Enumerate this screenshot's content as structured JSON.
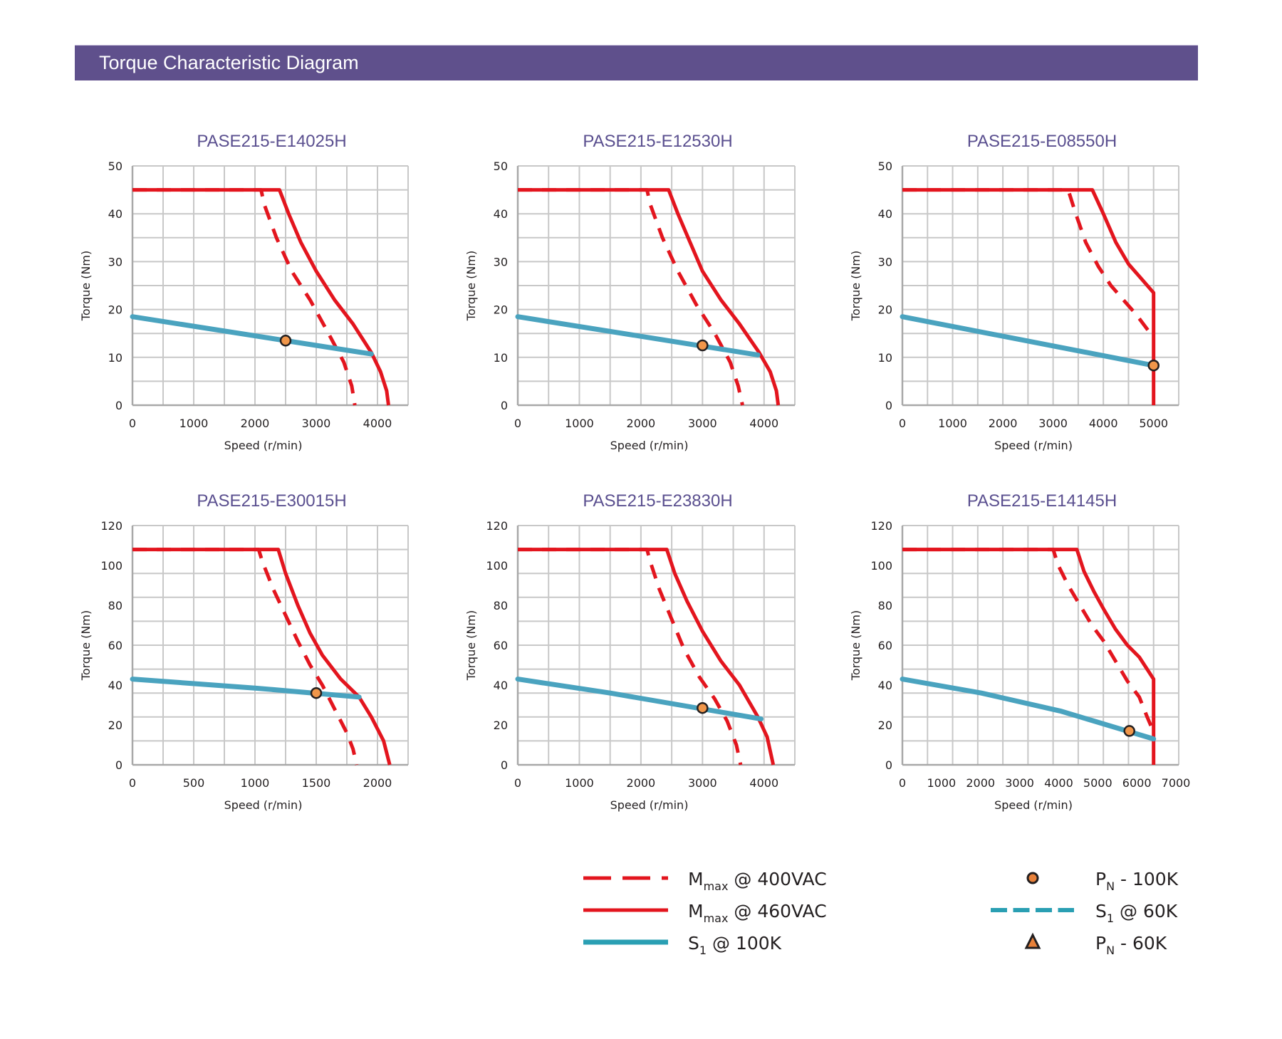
{
  "header": {
    "title": "Torque Characteristic Diagram"
  },
  "colors": {
    "header_bg": "#5f508c",
    "title_text": "#5a4f8f",
    "mmax_400": "#e3151e",
    "mmax_460": "#e3151e",
    "s1_100k": "#4aa3bf",
    "s1_60k": "#2a9fb3",
    "pn_marker": "#f0964a",
    "grid": "#c8c8c8"
  },
  "legend": [
    {
      "key": "mmax_400",
      "main": "M",
      "sub": "max",
      "rest": " @ 400VAC",
      "style": "dash-red"
    },
    {
      "key": "mmax_460",
      "main": "M",
      "sub": "max",
      "rest": " @ 460VAC",
      "style": "solid-red"
    },
    {
      "key": "s1_100k",
      "main": "S",
      "sub": "1",
      "rest": " @ 100K",
      "style": "solid-blue"
    },
    {
      "key": "pn_100k",
      "main": "P",
      "sub": "N",
      "rest": " - 100K",
      "style": "circle"
    },
    {
      "key": "s1_60k",
      "main": "S",
      "sub": "1",
      "rest": " @ 60K",
      "style": "dash-blue"
    },
    {
      "key": "pn_60k",
      "main": "P",
      "sub": "N",
      "rest": " - 60K",
      "style": "triangle"
    }
  ],
  "chart_data": [
    {
      "type": "line",
      "title": "PASE215-E14025H",
      "xlabel": "Speed (r/min)",
      "ylabel": "Torque (Nm)",
      "xlim": [
        0,
        4500
      ],
      "ylim": [
        0,
        50
      ],
      "xticks": [
        0,
        1000,
        2000,
        3000,
        4000
      ],
      "yticks": [
        0,
        10,
        20,
        30,
        40,
        50
      ],
      "grid": true,
      "grid_x_step": 500,
      "grid_y_step": 5,
      "series": [
        {
          "name": "Mmax @ 400VAC",
          "style": "dashed",
          "points": [
            [
              0,
              45
            ],
            [
              2100,
              45
            ],
            [
              2150,
              42
            ],
            [
              2350,
              35
            ],
            [
              2600,
              28
            ],
            [
              2900,
              22
            ],
            [
              3200,
              15
            ],
            [
              3450,
              9
            ],
            [
              3580,
              4
            ],
            [
              3630,
              0
            ]
          ]
        },
        {
          "name": "Mmax @ 460VAC",
          "style": "solid",
          "points": [
            [
              0,
              45
            ],
            [
              2400,
              45
            ],
            [
              2550,
              40
            ],
            [
              2750,
              34
            ],
            [
              3000,
              28
            ],
            [
              3300,
              22
            ],
            [
              3600,
              17
            ],
            [
              3900,
              11
            ],
            [
              4050,
              7
            ],
            [
              4150,
              3
            ],
            [
              4180,
              0
            ]
          ]
        },
        {
          "name": "S1 @ 100K",
          "style": "solid",
          "points": [
            [
              0,
              18.5
            ],
            [
              3900,
              10.7
            ]
          ]
        }
      ],
      "markers": [
        {
          "name": "PN - 100K",
          "shape": "circle",
          "x": 2500,
          "y": 13.5
        }
      ]
    },
    {
      "type": "line",
      "title": "PASE215-E12530H",
      "xlabel": "Speed (r/min)",
      "ylabel": "Torque (Nm)",
      "xlim": [
        0,
        4500
      ],
      "ylim": [
        0,
        50
      ],
      "xticks": [
        0,
        1000,
        2000,
        3000,
        4000
      ],
      "yticks": [
        0,
        10,
        20,
        30,
        40,
        50
      ],
      "grid": true,
      "grid_x_step": 500,
      "grid_y_step": 5,
      "series": [
        {
          "name": "Mmax @ 400VAC",
          "style": "dashed",
          "points": [
            [
              0,
              45
            ],
            [
              2100,
              45
            ],
            [
              2150,
              42
            ],
            [
              2350,
              35
            ],
            [
              2600,
              28
            ],
            [
              2900,
              21
            ],
            [
              3200,
              15
            ],
            [
              3450,
              9
            ],
            [
              3580,
              4
            ],
            [
              3650,
              0
            ]
          ]
        },
        {
          "name": "Mmax @ 460VAC",
          "style": "solid",
          "points": [
            [
              0,
              45
            ],
            [
              2450,
              45
            ],
            [
              2600,
              40
            ],
            [
              2800,
              34
            ],
            [
              3000,
              28
            ],
            [
              3300,
              22
            ],
            [
              3600,
              17
            ],
            [
              3920,
              11
            ],
            [
              4100,
              7
            ],
            [
              4200,
              3
            ],
            [
              4230,
              0
            ]
          ]
        },
        {
          "name": "S1 @ 100K",
          "style": "solid",
          "points": [
            [
              0,
              18.5
            ],
            [
              3900,
              10.5
            ]
          ]
        }
      ],
      "markers": [
        {
          "name": "PN - 100K",
          "shape": "circle",
          "x": 3000,
          "y": 12.5
        }
      ]
    },
    {
      "type": "line",
      "title": "PASE215-E08550H",
      "xlabel": "Speed (r/min)",
      "ylabel": "Torque (Nm)",
      "xlim": [
        0,
        5500
      ],
      "ylim": [
        0,
        50
      ],
      "xticks": [
        0,
        1000,
        2000,
        3000,
        4000,
        5000
      ],
      "yticks": [
        0,
        10,
        20,
        30,
        40,
        50
      ],
      "grid": true,
      "grid_x_step": 500,
      "grid_y_step": 5,
      "series": [
        {
          "name": "Mmax @ 400VAC",
          "style": "dashed",
          "points": [
            [
              0,
              45
            ],
            [
              3300,
              45
            ],
            [
              3450,
              40
            ],
            [
              3650,
              34
            ],
            [
              3900,
              29
            ],
            [
              4150,
              25
            ],
            [
              4400,
              22
            ],
            [
              4650,
              19
            ],
            [
              4900,
              15.5
            ]
          ]
        },
        {
          "name": "Mmax @ 460VAC",
          "style": "solid",
          "points": [
            [
              0,
              45
            ],
            [
              3780,
              45
            ],
            [
              4000,
              40
            ],
            [
              4250,
              34
            ],
            [
              4500,
              29.5
            ],
            [
              4750,
              26.5
            ],
            [
              5000,
              23.5
            ],
            [
              5000,
              0
            ]
          ]
        },
        {
          "name": "S1 @ 100K",
          "style": "solid",
          "points": [
            [
              0,
              18.5
            ],
            [
              5000,
              8.3
            ]
          ]
        }
      ],
      "markers": [
        {
          "name": "PN - 100K",
          "shape": "circle",
          "x": 5000,
          "y": 8.3
        }
      ]
    },
    {
      "type": "line",
      "title": "PASE215-E30015H",
      "xlabel": "Speed (r/min)",
      "ylabel": "Torque (Nm)",
      "xlim": [
        0,
        2250
      ],
      "ylim": [
        0,
        120
      ],
      "xticks": [
        0,
        500,
        1000,
        1500,
        2000
      ],
      "yticks": [
        0,
        20,
        40,
        60,
        80,
        100,
        120
      ],
      "grid": true,
      "grid_x_step": 250,
      "grid_y_step": 12,
      "series": [
        {
          "name": "Mmax @ 400VAC",
          "style": "dashed",
          "points": [
            [
              0,
              108
            ],
            [
              1030,
              108
            ],
            [
              1060,
              102
            ],
            [
              1150,
              88
            ],
            [
              1250,
              75
            ],
            [
              1350,
              62
            ],
            [
              1450,
              50
            ],
            [
              1550,
              40
            ],
            [
              1650,
              28
            ],
            [
              1750,
              16
            ],
            [
              1800,
              8
            ],
            [
              1830,
              0
            ]
          ]
        },
        {
          "name": "Mmax @ 460VAC",
          "style": "solid",
          "points": [
            [
              0,
              108
            ],
            [
              1190,
              108
            ],
            [
              1250,
              96
            ],
            [
              1350,
              80
            ],
            [
              1450,
              66
            ],
            [
              1550,
              55
            ],
            [
              1700,
              43
            ],
            [
              1850,
              34
            ],
            [
              1950,
              24
            ],
            [
              2050,
              12
            ],
            [
              2100,
              0
            ]
          ]
        },
        {
          "name": "S1 @ 100K",
          "style": "solid",
          "points": [
            [
              0,
              43
            ],
            [
              1000,
              38.5
            ],
            [
              1850,
              34
            ]
          ]
        }
      ],
      "markers": [
        {
          "name": "PN - 100K",
          "shape": "circle",
          "x": 1500,
          "y": 36
        }
      ]
    },
    {
      "type": "line",
      "title": "PASE215-E23830H",
      "xlabel": "Speed (r/min)",
      "ylabel": "Torque (Nm)",
      "xlim": [
        0,
        4500
      ],
      "ylim": [
        0,
        120
      ],
      "xticks": [
        0,
        1000,
        2000,
        3000,
        4000
      ],
      "yticks": [
        0,
        20,
        40,
        60,
        80,
        100,
        120
      ],
      "grid": true,
      "grid_x_step": 500,
      "grid_y_step": 12,
      "series": [
        {
          "name": "Mmax @ 400VAC",
          "style": "dashed",
          "points": [
            [
              0,
              108
            ],
            [
              2100,
              108
            ],
            [
              2150,
              102
            ],
            [
              2300,
              88
            ],
            [
              2500,
              73
            ],
            [
              2700,
              58
            ],
            [
              2950,
              44
            ],
            [
              3200,
              33
            ],
            [
              3400,
              22
            ],
            [
              3550,
              10
            ],
            [
              3620,
              0
            ]
          ]
        },
        {
          "name": "Mmax @ 460VAC",
          "style": "solid",
          "points": [
            [
              0,
              108
            ],
            [
              2420,
              108
            ],
            [
              2550,
              96
            ],
            [
              2750,
              82
            ],
            [
              3000,
              67
            ],
            [
              3300,
              52
            ],
            [
              3600,
              40
            ],
            [
              3900,
              24
            ],
            [
              4050,
              14
            ],
            [
              4150,
              0
            ]
          ]
        },
        {
          "name": "S1 @ 100K",
          "style": "solid",
          "points": [
            [
              0,
              43
            ],
            [
              1500,
              36
            ],
            [
              3950,
              23
            ]
          ]
        }
      ],
      "markers": [
        {
          "name": "PN - 100K",
          "shape": "circle",
          "x": 3000,
          "y": 28.5
        }
      ]
    },
    {
      "type": "line",
      "title": "PASE215-E14145H",
      "xlabel": "Speed (r/min)",
      "ylabel": "Torque (Nm)",
      "xlim": [
        0,
        7000
      ],
      "ylim": [
        0,
        120
      ],
      "xticks": [
        0,
        1000,
        2000,
        3000,
        4000,
        5000,
        6000,
        7000
      ],
      "yticks": [
        0,
        20,
        40,
        60,
        80,
        100,
        120
      ],
      "grid": true,
      "grid_x_divisions": 11,
      "grid_y_step": 12,
      "series": [
        {
          "name": "Mmax @ 400VAC",
          "style": "dashed",
          "points": [
            [
              0,
              108
            ],
            [
              3820,
              108
            ],
            [
              3950,
              100
            ],
            [
              4200,
              90
            ],
            [
              4500,
              80
            ],
            [
              4800,
              70
            ],
            [
              5100,
              62
            ],
            [
              5400,
              52
            ],
            [
              5700,
              42
            ],
            [
              6000,
              34
            ],
            [
              6200,
              24
            ],
            [
              6330,
              18
            ]
          ]
        },
        {
          "name": "Mmax @ 460VAC",
          "style": "solid",
          "points": [
            [
              0,
              108
            ],
            [
              4420,
              108
            ],
            [
              4600,
              97
            ],
            [
              4850,
              87
            ],
            [
              5100,
              78
            ],
            [
              5400,
              68
            ],
            [
              5700,
              60
            ],
            [
              6000,
              54
            ],
            [
              6364,
              43
            ],
            [
              6364,
              0
            ]
          ]
        },
        {
          "name": "S1 @ 100K",
          "style": "solid",
          "points": [
            [
              0,
              43
            ],
            [
              2000,
              36
            ],
            [
              4000,
              27
            ],
            [
              6364,
              13
            ]
          ]
        }
      ],
      "markers": [
        {
          "name": "PN - 100K",
          "shape": "circle",
          "x": 5750,
          "y": 17
        }
      ]
    }
  ]
}
